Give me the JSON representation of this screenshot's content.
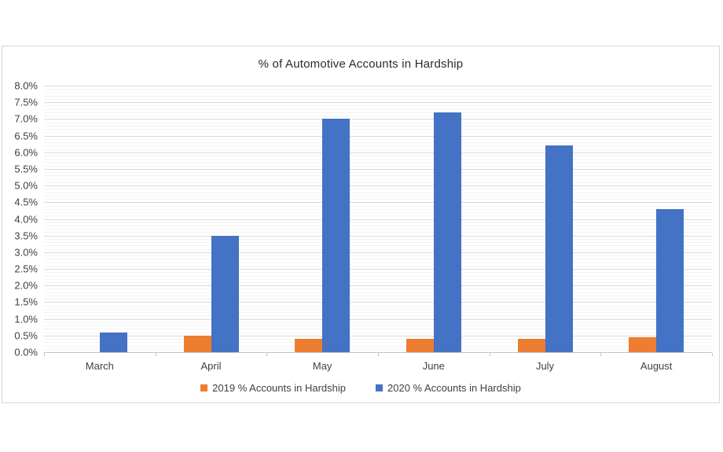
{
  "chart_data": {
    "type": "bar",
    "title": "% of Automotive Accounts in Hardship",
    "categories": [
      "March",
      "April",
      "May",
      "June",
      "July",
      "August"
    ],
    "series": [
      {
        "name": "2019 % Accounts in Hardship",
        "color": "#ED7D31",
        "values": [
          0.0,
          0.5,
          0.4,
          0.4,
          0.4,
          0.45
        ]
      },
      {
        "name": "2020 % Accounts in Hardship",
        "color": "#4472C4",
        "values": [
          0.6,
          3.5,
          7.0,
          7.2,
          6.2,
          4.3
        ]
      }
    ],
    "ylim": [
      0.0,
      8.0
    ],
    "y_major_step": 0.5,
    "y_minor_step": 0.1,
    "y_tick_labels": [
      "8.0%",
      "7.5%",
      "7.0%",
      "6.5%",
      "6.0%",
      "5.5%",
      "5.0%",
      "4.5%",
      "4.0%",
      "3.5%",
      "3.0%",
      "2.5%",
      "2.0%",
      "1.5%",
      "1.0%",
      "0.5%",
      "0.0%"
    ],
    "grid": true,
    "legend_position": "bottom"
  },
  "colors": {
    "gridline_major": "#dadada",
    "gridline_minor": "#f3f3f3",
    "axis_line": "#c3c3c3",
    "text": "#404040",
    "background": "#ffffff"
  }
}
